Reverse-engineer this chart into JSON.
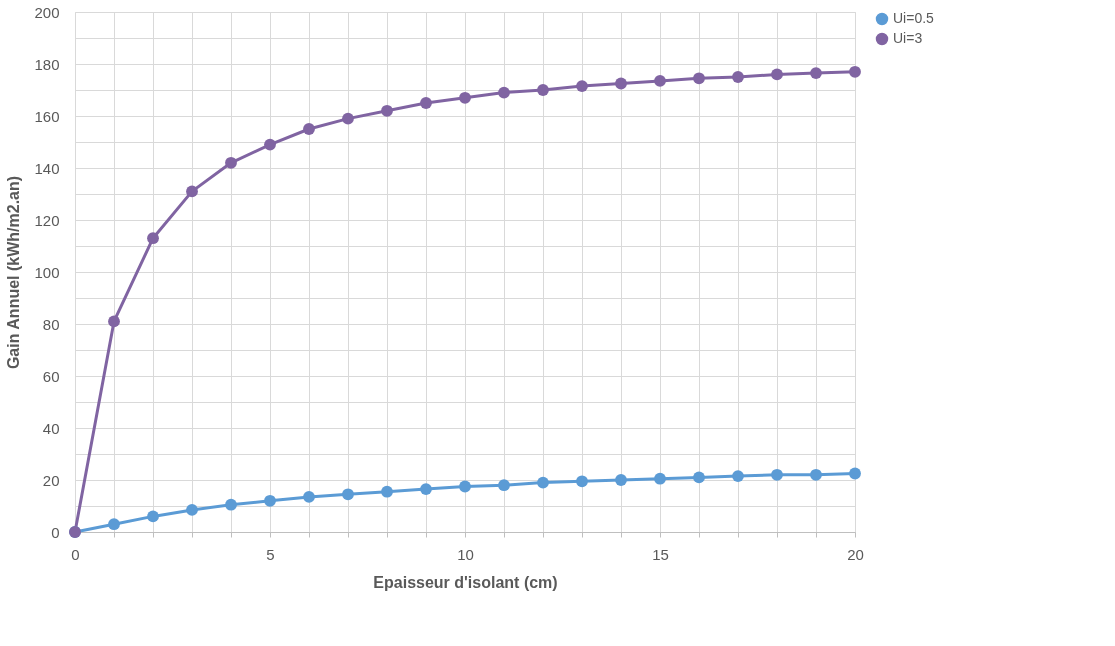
{
  "chart_data": {
    "type": "line",
    "xlabel": "Epaisseur d'isolant (cm)",
    "ylabel": "Gain Annuel (kWh/m2.an)",
    "x": [
      0,
      1,
      2,
      3,
      4,
      5,
      6,
      7,
      8,
      9,
      10,
      11,
      12,
      13,
      14,
      15,
      16,
      17,
      18,
      19,
      20
    ],
    "series": [
      {
        "name": "Ui=0.5",
        "color": "#5b9bd5",
        "values": [
          0,
          3,
          6,
          8.5,
          10.5,
          12,
          13.5,
          14.5,
          15.5,
          16.5,
          17.5,
          18,
          19,
          19.5,
          20,
          20.5,
          21,
          21.5,
          22,
          22,
          22.5
        ]
      },
      {
        "name": "Ui=3",
        "color": "#8064a2",
        "values": [
          0,
          81,
          113,
          131,
          142,
          149,
          155,
          159,
          162,
          165,
          167,
          169,
          170,
          171.5,
          172.5,
          173.5,
          174.5,
          175,
          176,
          176.5,
          177
        ]
      }
    ],
    "xlim": [
      0,
      20
    ],
    "xticks": [
      0,
      {
        "value": 1,
        "label": null
      },
      {
        "value": 2,
        "label": null
      },
      {
        "value": 3,
        "label": null
      },
      {
        "value": 4,
        "label": null
      },
      5,
      {
        "value": 6,
        "label": null
      },
      {
        "value": 7,
        "label": null
      },
      {
        "value": 8,
        "label": null
      },
      {
        "value": 9,
        "label": null
      },
      10,
      {
        "value": 11,
        "label": null
      },
      {
        "value": 12,
        "label": null
      },
      {
        "value": 13,
        "label": null
      },
      {
        "value": 14,
        "label": null
      },
      15,
      {
        "value": 16,
        "label": null
      },
      {
        "value": 17,
        "label": null
      },
      {
        "value": 18,
        "label": null
      },
      {
        "value": 19,
        "label": null
      },
      20
    ],
    "ylim": [
      0,
      200
    ],
    "yticks": [
      0,
      {
        "value": 10,
        "label": null
      },
      20,
      {
        "value": 30,
        "label": null
      },
      40,
      {
        "value": 50,
        "label": null
      },
      60,
      {
        "value": 70,
        "label": null
      },
      80,
      {
        "value": 90,
        "label": null
      },
      100,
      {
        "value": 110,
        "label": null
      },
      120,
      {
        "value": 130,
        "label": null
      },
      140,
      {
        "value": 150,
        "label": null
      },
      160,
      {
        "value": 170,
        "label": null
      },
      180,
      {
        "value": 190,
        "label": null
      },
      200
    ],
    "grid": true,
    "legend": "right",
    "marker": "circle",
    "line_style": "solid"
  }
}
